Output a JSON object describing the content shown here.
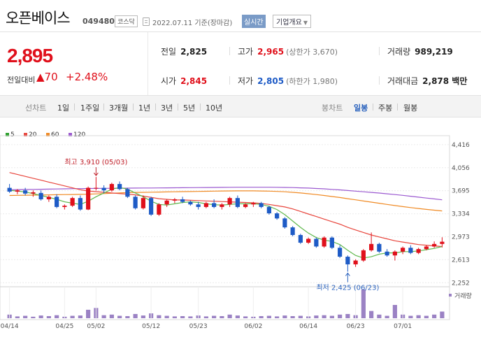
{
  "header": {
    "name": "오픈베이스",
    "code": "049480",
    "market": "코스닥",
    "date": "2022.07.11 기준(장마감)",
    "live_label": "실시간",
    "overview_label": "기업개요",
    "overview_icon": "chevron-down-icon"
  },
  "price": {
    "current": "2,895",
    "change_label": "전일대비",
    "change_amount": "▲70",
    "change_percent": "+2.48%"
  },
  "stats": {
    "prev_close": {
      "label": "전일",
      "value": "2,825"
    },
    "open": {
      "label": "시가",
      "value": "2,845"
    },
    "high": {
      "label": "고가",
      "value": "2,965",
      "sub": "(상한가 3,670)"
    },
    "low": {
      "label": "저가",
      "value": "2,805",
      "sub": "(하한가 1,980)"
    },
    "volume": {
      "label": "거래량",
      "value": "989,219"
    },
    "amount": {
      "label": "거래대금",
      "value": "2,878 백만"
    }
  },
  "tabs": {
    "line_chart": "선차트",
    "periods": [
      "1일",
      "1주일",
      "3개월",
      "1년",
      "3년",
      "5년",
      "10년"
    ],
    "candle_chart": "봉차트",
    "candle_periods": [
      "일봉",
      "주봉",
      "월봉"
    ],
    "active_candle": "일봉"
  },
  "legend": [
    {
      "name": "5",
      "color": "#2ca02c"
    },
    {
      "name": "20",
      "color": "#e8453c"
    },
    {
      "name": "60",
      "color": "#f08a24"
    },
    {
      "name": "120",
      "color": "#9b59d0"
    }
  ],
  "chart_data": {
    "type": "candlestick",
    "y_ticks": [
      4416,
      4056,
      3695,
      3334,
      2973,
      2613,
      2252
    ],
    "y_tick_labels": [
      "4,416",
      "4,056",
      "3,695",
      "3,334",
      "2,973",
      "2,613",
      "2,252"
    ],
    "ylim": [
      2200,
      4470
    ],
    "x_labels": [
      "04/14",
      "04/25",
      "05/02",
      "05/12",
      "05/23",
      "06/02",
      "06/14",
      "06/23",
      "07/01"
    ],
    "x_label_index": [
      0,
      7,
      11,
      18,
      24,
      31,
      38,
      44,
      50
    ],
    "high_annotation": "최고 3,910 (05/03)",
    "low_annotation": "최저 2,425 (06/23)",
    "volume_label": "거래량",
    "candles": [
      [
        3740,
        3800,
        3660,
        3680
      ],
      [
        3680,
        3720,
        3640,
        3700
      ],
      [
        3700,
        3740,
        3620,
        3650
      ],
      [
        3650,
        3700,
        3600,
        3670
      ],
      [
        3660,
        3700,
        3540,
        3560
      ],
      [
        3560,
        3620,
        3520,
        3600
      ],
      [
        3600,
        3640,
        3420,
        3440
      ],
      [
        3440,
        3480,
        3400,
        3460
      ],
      [
        3460,
        3600,
        3440,
        3580
      ],
      [
        3580,
        3620,
        3380,
        3400
      ],
      [
        3400,
        3760,
        3390,
        3740
      ],
      [
        3740,
        3910,
        3700,
        3740
      ],
      [
        3740,
        3780,
        3660,
        3700
      ],
      [
        3700,
        3820,
        3680,
        3800
      ],
      [
        3800,
        3840,
        3700,
        3720
      ],
      [
        3720,
        3740,
        3580,
        3600
      ],
      [
        3600,
        3620,
        3400,
        3420
      ],
      [
        3420,
        3620,
        3400,
        3580
      ],
      [
        3580,
        3600,
        3300,
        3320
      ],
      [
        3320,
        3500,
        3300,
        3480
      ],
      [
        3480,
        3560,
        3440,
        3540
      ],
      [
        3540,
        3580,
        3500,
        3560
      ],
      [
        3560,
        3600,
        3500,
        3520
      ],
      [
        3520,
        3540,
        3460,
        3480
      ],
      [
        3480,
        3520,
        3400,
        3440
      ],
      [
        3440,
        3520,
        3420,
        3500
      ],
      [
        3500,
        3560,
        3420,
        3440
      ],
      [
        3440,
        3500,
        3400,
        3480
      ],
      [
        3480,
        3600,
        3440,
        3580
      ],
      [
        3580,
        3620,
        3420,
        3440
      ],
      [
        3440,
        3500,
        3420,
        3480
      ],
      [
        3480,
        3520,
        3440,
        3500
      ],
      [
        3500,
        3520,
        3420,
        3440
      ],
      [
        3440,
        3460,
        3320,
        3340
      ],
      [
        3340,
        3360,
        3240,
        3260
      ],
      [
        3260,
        3280,
        3100,
        3120
      ],
      [
        3120,
        3140,
        2980,
        3000
      ],
      [
        3000,
        3020,
        2860,
        2880
      ],
      [
        2880,
        2960,
        2860,
        2940
      ],
      [
        2940,
        2960,
        2800,
        2820
      ],
      [
        2820,
        2980,
        2800,
        2960
      ],
      [
        2960,
        2980,
        2780,
        2800
      ],
      [
        2800,
        2840,
        2640,
        2660
      ],
      [
        2660,
        2680,
        2425,
        2540
      ],
      [
        2540,
        2620,
        2500,
        2600
      ],
      [
        2600,
        2780,
        2580,
        2760
      ],
      [
        2760,
        3040,
        2740,
        2860
      ],
      [
        2860,
        2880,
        2720,
        2740
      ],
      [
        2740,
        2780,
        2660,
        2680
      ],
      [
        2680,
        2760,
        2600,
        2740
      ],
      [
        2740,
        2820,
        2700,
        2800
      ],
      [
        2800,
        2840,
        2700,
        2720
      ],
      [
        2720,
        2800,
        2700,
        2780
      ],
      [
        2780,
        2840,
        2760,
        2820
      ],
      [
        2820,
        2900,
        2800,
        2860
      ],
      [
        2860,
        2965,
        2805,
        2895
      ]
    ],
    "volumes": [
      12,
      6,
      8,
      5,
      9,
      7,
      10,
      5,
      8,
      9,
      28,
      34,
      10,
      12,
      8,
      7,
      14,
      9,
      16,
      10,
      8,
      6,
      7,
      6,
      9,
      6,
      8,
      7,
      12,
      9,
      6,
      5,
      7,
      8,
      6,
      9,
      7,
      8,
      6,
      9,
      10,
      8,
      12,
      14,
      10,
      95,
      24,
      12,
      8,
      44,
      12,
      8,
      10,
      8,
      12,
      22
    ],
    "ma_5": [
      3700,
      3690,
      3675,
      3650,
      3620,
      3590,
      3560,
      3520,
      3500,
      3480,
      3530,
      3600,
      3660,
      3720,
      3745,
      3720,
      3660,
      3600,
      3530,
      3480,
      3470,
      3490,
      3510,
      3520,
      3510,
      3490,
      3475,
      3470,
      3480,
      3490,
      3490,
      3490,
      3480,
      3450,
      3400,
      3320,
      3220,
      3120,
      3030,
      2960,
      2920,
      2900,
      2850,
      2760,
      2680,
      2640,
      2660,
      2700,
      2720,
      2720,
      2740,
      2740,
      2750,
      2770,
      2790,
      2820
    ],
    "ma_20": [
      3980,
      3950,
      3920,
      3890,
      3860,
      3830,
      3800,
      3770,
      3740,
      3710,
      3690,
      3680,
      3670,
      3660,
      3650,
      3640,
      3630,
      3610,
      3590,
      3570,
      3560,
      3550,
      3550,
      3545,
      3540,
      3535,
      3530,
      3525,
      3520,
      3515,
      3510,
      3505,
      3495,
      3480,
      3460,
      3440,
      3410,
      3370,
      3330,
      3290,
      3250,
      3210,
      3170,
      3120,
      3080,
      3040,
      3000,
      2970,
      2940,
      2910,
      2890,
      2870,
      2850,
      2840,
      2830,
      2820
    ],
    "ma_60": [
      3620,
      3622,
      3624,
      3626,
      3628,
      3630,
      3632,
      3634,
      3636,
      3638,
      3640,
      3645,
      3650,
      3655,
      3660,
      3665,
      3668,
      3670,
      3672,
      3674,
      3676,
      3678,
      3680,
      3682,
      3684,
      3686,
      3688,
      3690,
      3691,
      3692,
      3693,
      3692,
      3690,
      3688,
      3684,
      3678,
      3670,
      3660,
      3648,
      3634,
      3620,
      3604,
      3588,
      3570,
      3552,
      3534,
      3516,
      3498,
      3480,
      3462,
      3446,
      3430,
      3416,
      3402,
      3390,
      3378
    ],
    "ma_120": [
      3710,
      3712,
      3714,
      3716,
      3718,
      3720,
      3722,
      3724,
      3726,
      3728,
      3730,
      3731,
      3732,
      3733,
      3734,
      3735,
      3736,
      3737,
      3738,
      3739,
      3740,
      3741,
      3742,
      3743,
      3744,
      3745,
      3746,
      3747,
      3748,
      3749,
      3750,
      3750,
      3750,
      3749,
      3748,
      3746,
      3744,
      3740,
      3736,
      3730,
      3724,
      3716,
      3708,
      3698,
      3688,
      3678,
      3668,
      3658,
      3646,
      3634,
      3622,
      3608,
      3594,
      3580,
      3566,
      3552
    ]
  }
}
